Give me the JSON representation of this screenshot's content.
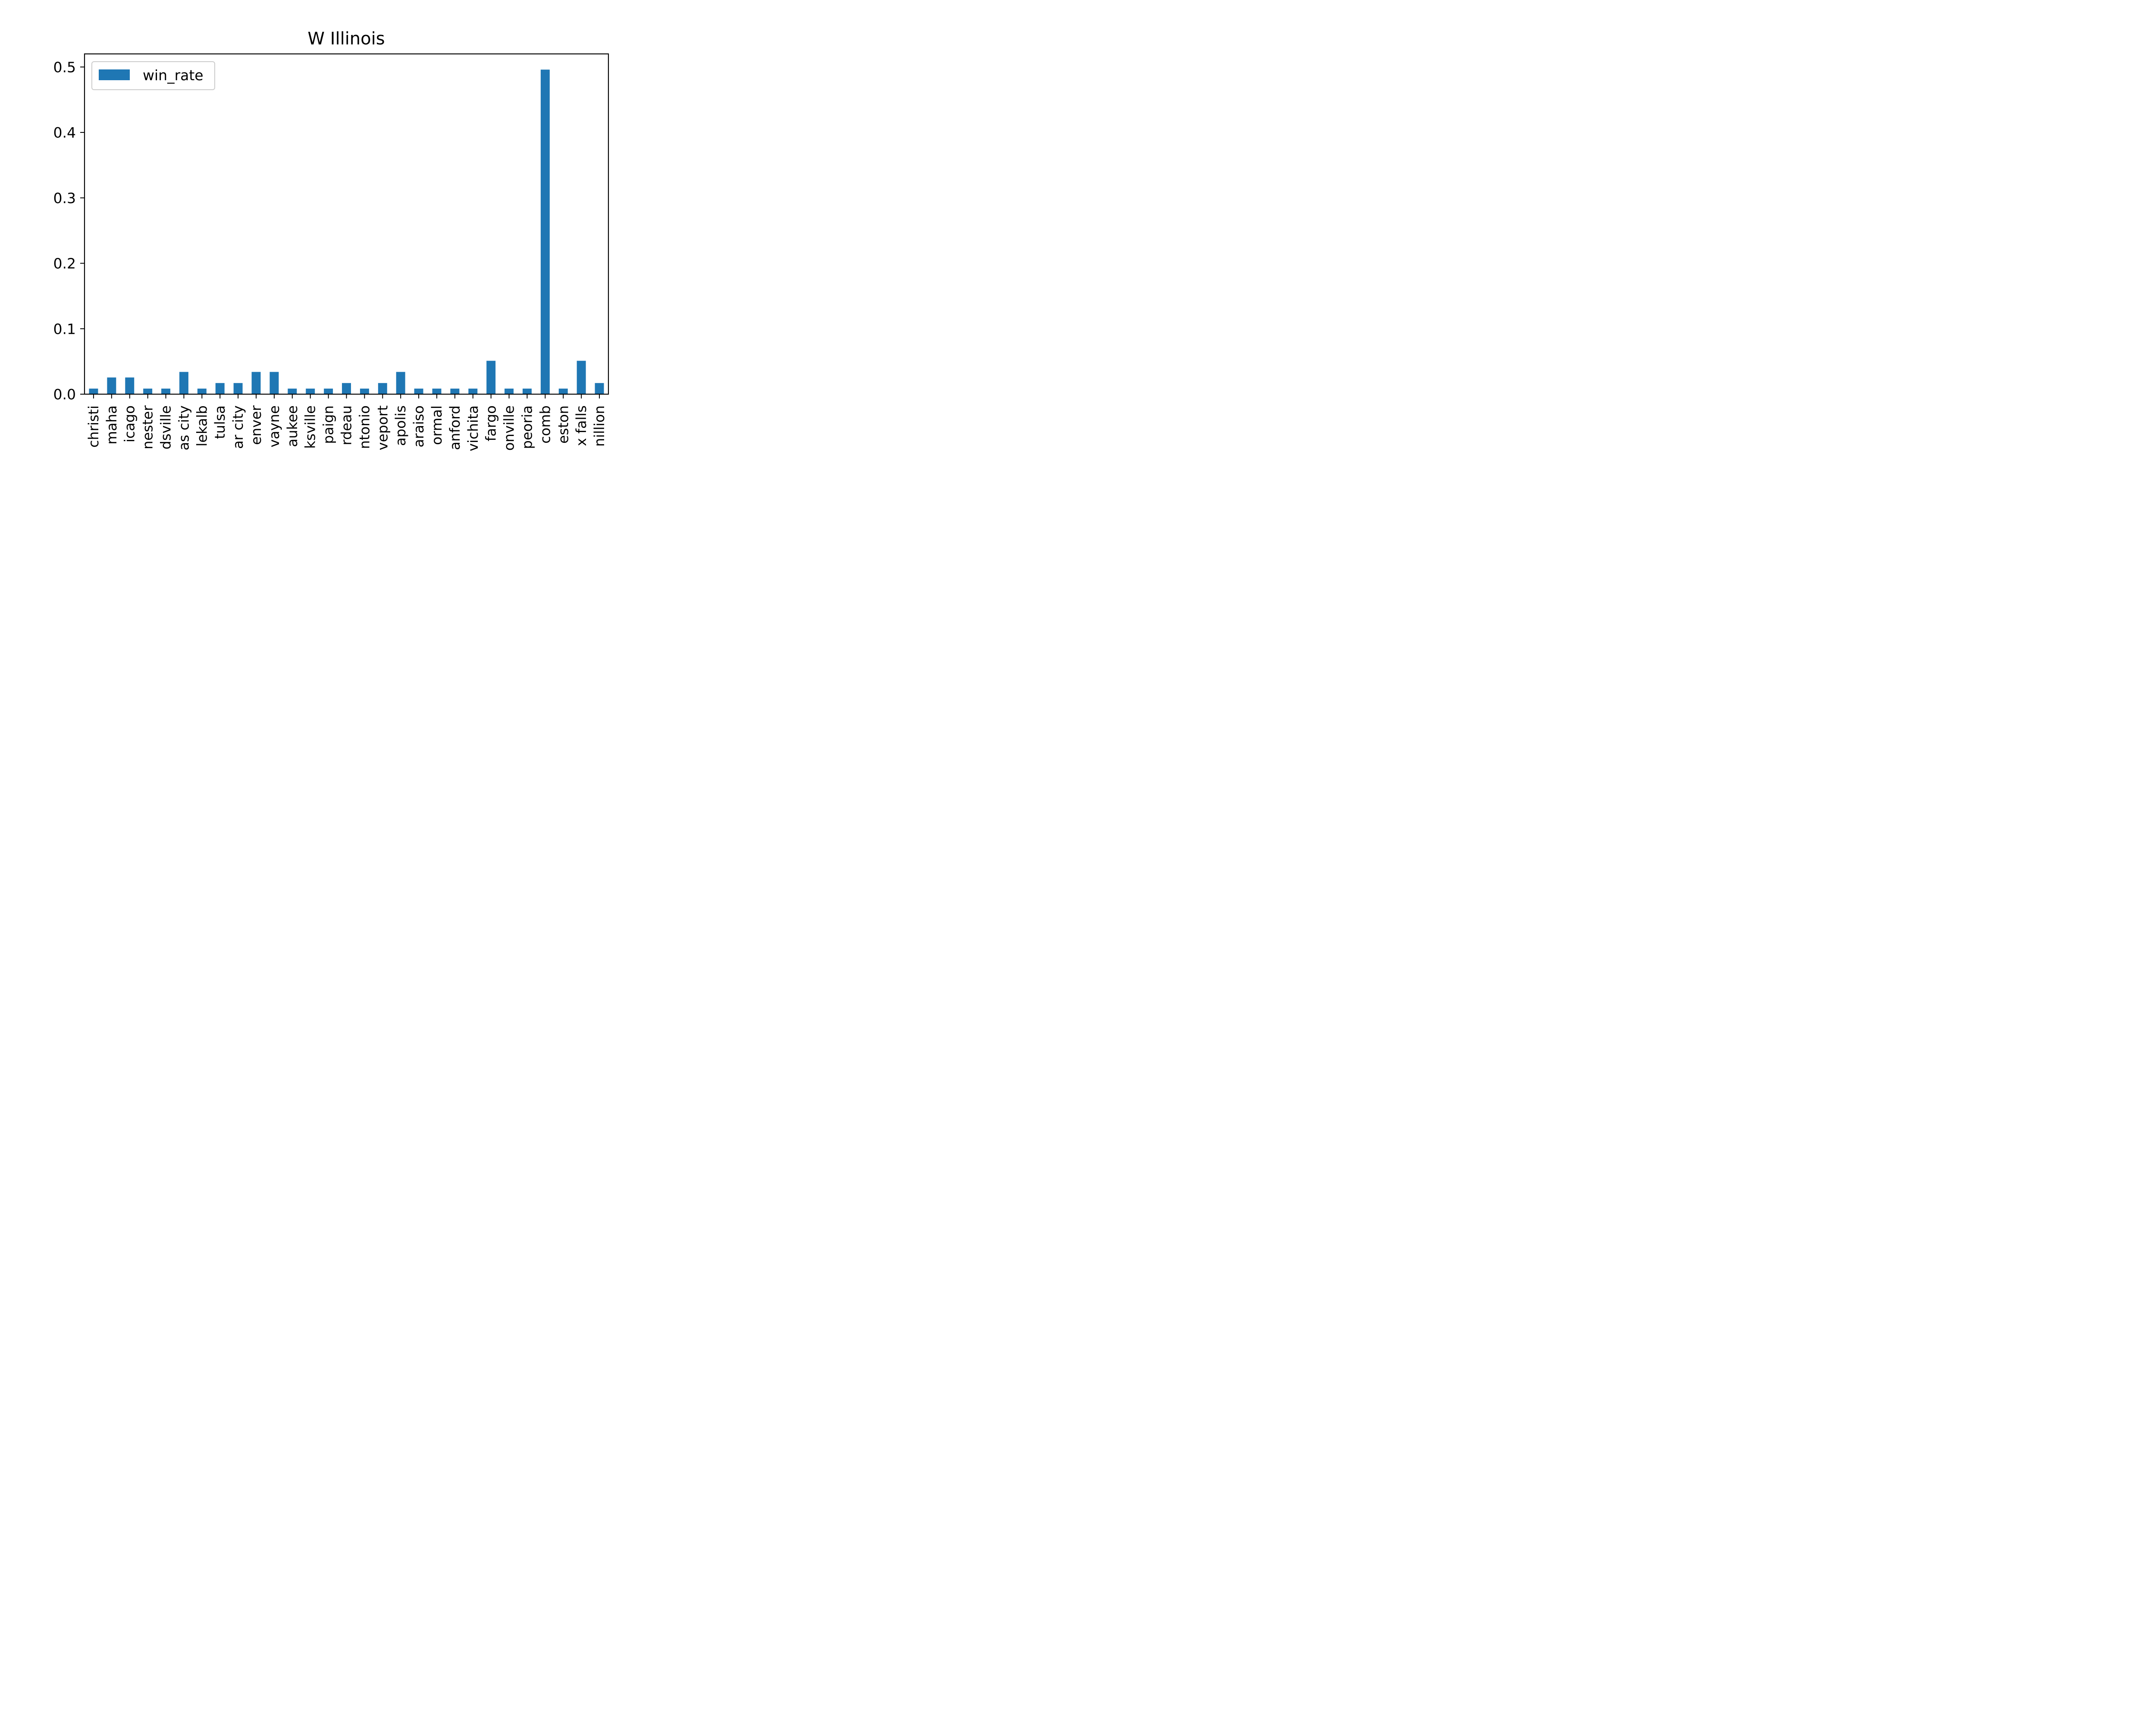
{
  "chart_data": {
    "type": "bar",
    "title": "W Illinois",
    "xlabel": "",
    "ylabel": "",
    "ylim": [
      0,
      0.52
    ],
    "yticks": [
      "0.0",
      "0.1",
      "0.2",
      "0.3",
      "0.4",
      "0.5"
    ],
    "ytick_values": [
      0.0,
      0.1,
      0.2,
      0.3,
      0.4,
      0.5
    ],
    "grid": false,
    "legend_position": "top-left",
    "categories": [
      "christi",
      "maha",
      "icago",
      "nester",
      "dsville",
      "as city",
      "lekalb",
      "tulsa",
      "ar city",
      "enver",
      "vayne",
      "aukee",
      "ksville",
      "paign",
      "rdeau",
      "ntonio",
      "veport",
      "apolis",
      "araiso",
      "ormal",
      "anford",
      "vichita",
      "fargo",
      "onville",
      "peoria",
      "comb",
      "eston",
      "x falls",
      "nillion"
    ],
    "series": [
      {
        "name": "win_rate",
        "color": "#1f77b4",
        "values": [
          0.0085,
          0.0255,
          0.0255,
          0.0085,
          0.0085,
          0.034,
          0.0085,
          0.017,
          0.017,
          0.034,
          0.034,
          0.0085,
          0.0085,
          0.0085,
          0.017,
          0.0085,
          0.017,
          0.034,
          0.0085,
          0.0085,
          0.0085,
          0.0085,
          0.051,
          0.0085,
          0.0085,
          0.496,
          0.0085,
          0.051,
          0.017
        ]
      }
    ]
  }
}
